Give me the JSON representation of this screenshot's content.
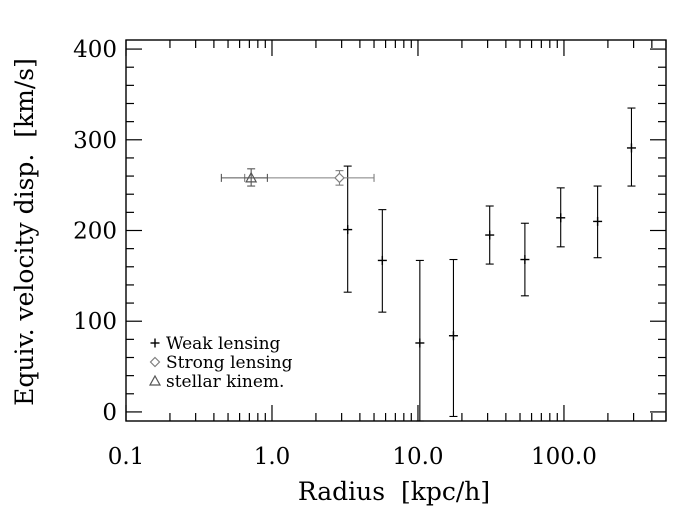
{
  "chart_data": {
    "type": "scatter",
    "xlabel": "Radius  [kpc/h]",
    "ylabel": "Equiv. velocity disp.  [km/s]",
    "xscale": "log",
    "xlim": [
      0.1,
      500
    ],
    "ylim": [
      -10,
      410
    ],
    "x_tick_labels": [
      "0.1",
      "1.0",
      "10.0",
      "100.0"
    ],
    "x_tick_values": [
      0.1,
      1,
      10,
      100
    ],
    "y_tick_labels": [
      "0",
      "100",
      "200",
      "300",
      "400"
    ],
    "y_tick_values": [
      0,
      100,
      200,
      300,
      400
    ],
    "grid": false,
    "legend_position": "bottom-left",
    "legend": [
      {
        "marker": "plus",
        "label": "Weak lensing",
        "color": "#000000"
      },
      {
        "marker": "diamond",
        "label": "Strong lensing",
        "color": "#7f7f7f"
      },
      {
        "marker": "triangle",
        "label": "stellar kinem.",
        "color": "#555555"
      }
    ],
    "series": [
      {
        "marker": "plus",
        "color": "#000000",
        "points": [
          {
            "x": 3.3,
            "y": 201,
            "ylo": 132,
            "yhi": 271
          },
          {
            "x": 5.7,
            "y": 167,
            "ylo": 110,
            "yhi": 223
          },
          {
            "x": 10.3,
            "y": 76,
            "ylo": -10,
            "yhi": 167
          },
          {
            "x": 17.5,
            "y": 84,
            "ylo": -5,
            "yhi": 168
          },
          {
            "x": 31,
            "y": 195,
            "ylo": 163,
            "yhi": 227
          },
          {
            "x": 54,
            "y": 168,
            "ylo": 128,
            "yhi": 208
          },
          {
            "x": 95,
            "y": 214,
            "ylo": 182,
            "yhi": 247
          },
          {
            "x": 170,
            "y": 210,
            "ylo": 170,
            "yhi": 249
          },
          {
            "x": 290,
            "y": 291,
            "ylo": 249,
            "yhi": 335
          }
        ]
      },
      {
        "marker": "diamond",
        "color": "#7f7f7f",
        "points": [
          {
            "x": 2.9,
            "y": 258,
            "ylo": 250,
            "yhi": 266,
            "xlo": 0.65,
            "xhi": 5.0
          }
        ]
      },
      {
        "marker": "triangle",
        "color": "#555555",
        "points": [
          {
            "x": 0.72,
            "y": 258,
            "ylo": 249,
            "yhi": 268,
            "xlo": 0.45,
            "xhi": 0.93
          }
        ]
      }
    ]
  }
}
